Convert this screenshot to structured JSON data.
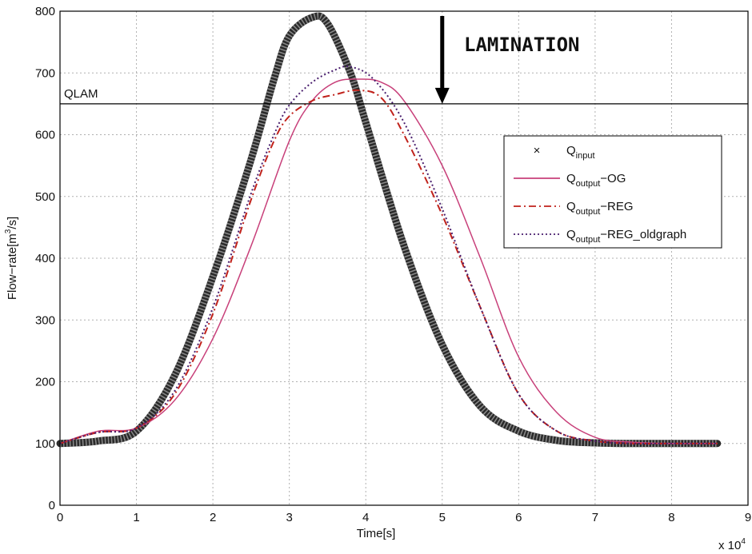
{
  "chart_data": {
    "type": "line",
    "xlabel": "Time[s]",
    "ylabel_parts": [
      "Flow−rate[m",
      "3",
      "/s]"
    ],
    "x_multiplier": "x 10",
    "x_multiplier_exp": "4",
    "xlim": [
      0,
      9
    ],
    "ylim": [
      0,
      800
    ],
    "xticks": [
      0,
      1,
      2,
      3,
      4,
      5,
      6,
      7,
      8,
      9
    ],
    "yticks": [
      0,
      100,
      200,
      300,
      400,
      500,
      600,
      700,
      800
    ],
    "grid": true,
    "legend_position": "right",
    "annotations": {
      "qlam_label": "QLAM",
      "qlam_value": 650,
      "lamination_label": "LAMINATION",
      "lamination_arrow_x": 5,
      "lamination_arrow_from": 800,
      "lamination_arrow_to": 650
    },
    "series": [
      {
        "name": "Q_input",
        "legend_main": "Q",
        "legend_sub": "input",
        "legend_rest": "",
        "style": "marker-x",
        "color": "#000000",
        "x": [
          0,
          0.5,
          1,
          1.5,
          2,
          2.5,
          2.8,
          3,
          3.3,
          3.5,
          3.8,
          4,
          4.5,
          5,
          5.5,
          6,
          6.5,
          7,
          7.5,
          8,
          8.6
        ],
        "y": [
          100,
          104,
          120,
          210,
          370,
          560,
          690,
          760,
          790,
          780,
          700,
          620,
          420,
          260,
          160,
          120,
          105,
          101,
          100,
          100,
          100
        ]
      },
      {
        "name": "Q_output_OG",
        "legend_main": "Q",
        "legend_sub": "output",
        "legend_rest": "OG",
        "style": "solid",
        "color": "#c8407a",
        "x": [
          0,
          0.5,
          1,
          1.5,
          2,
          2.5,
          3,
          3.3,
          3.6,
          3.9,
          4.2,
          4.5,
          5,
          5.5,
          6,
          6.5,
          7,
          7.5,
          8,
          8.6
        ],
        "y": [
          100,
          120,
          125,
          170,
          270,
          420,
          590,
          655,
          685,
          690,
          685,
          655,
          550,
          400,
          240,
          150,
          110,
          102,
          100,
          100
        ]
      },
      {
        "name": "Q_output_REG",
        "legend_main": "Q",
        "legend_sub": "output",
        "legend_rest": "REG",
        "style": "dashdot",
        "color": "#c0221b",
        "x": [
          0,
          0.5,
          1,
          1.5,
          2,
          2.5,
          2.8,
          3,
          3.3,
          3.6,
          3.9,
          4.2,
          4.5,
          5,
          5.5,
          6,
          6.5,
          7,
          7.5,
          8,
          8.6
        ],
        "y": [
          100,
          118,
          125,
          180,
          310,
          495,
          590,
          630,
          655,
          665,
          672,
          660,
          600,
          470,
          320,
          180,
          120,
          104,
          100,
          100,
          100
        ]
      },
      {
        "name": "Q_output_REG_oldgraph",
        "legend_main": "Q",
        "legend_sub": "output",
        "legend_rest": "REG_oldgraph",
        "style": "dotted",
        "color": "#4a1f6e",
        "x": [
          0,
          0.5,
          1,
          1.5,
          2,
          2.5,
          2.8,
          3,
          3.3,
          3.6,
          3.8,
          4.1,
          4.5,
          5,
          5.5,
          6,
          6.5,
          7,
          7.5,
          8,
          8.6
        ],
        "y": [
          100,
          118,
          125,
          185,
          320,
          505,
          600,
          648,
          685,
          705,
          710,
          690,
          620,
          480,
          320,
          180,
          120,
          104,
          100,
          100,
          100
        ]
      }
    ]
  }
}
